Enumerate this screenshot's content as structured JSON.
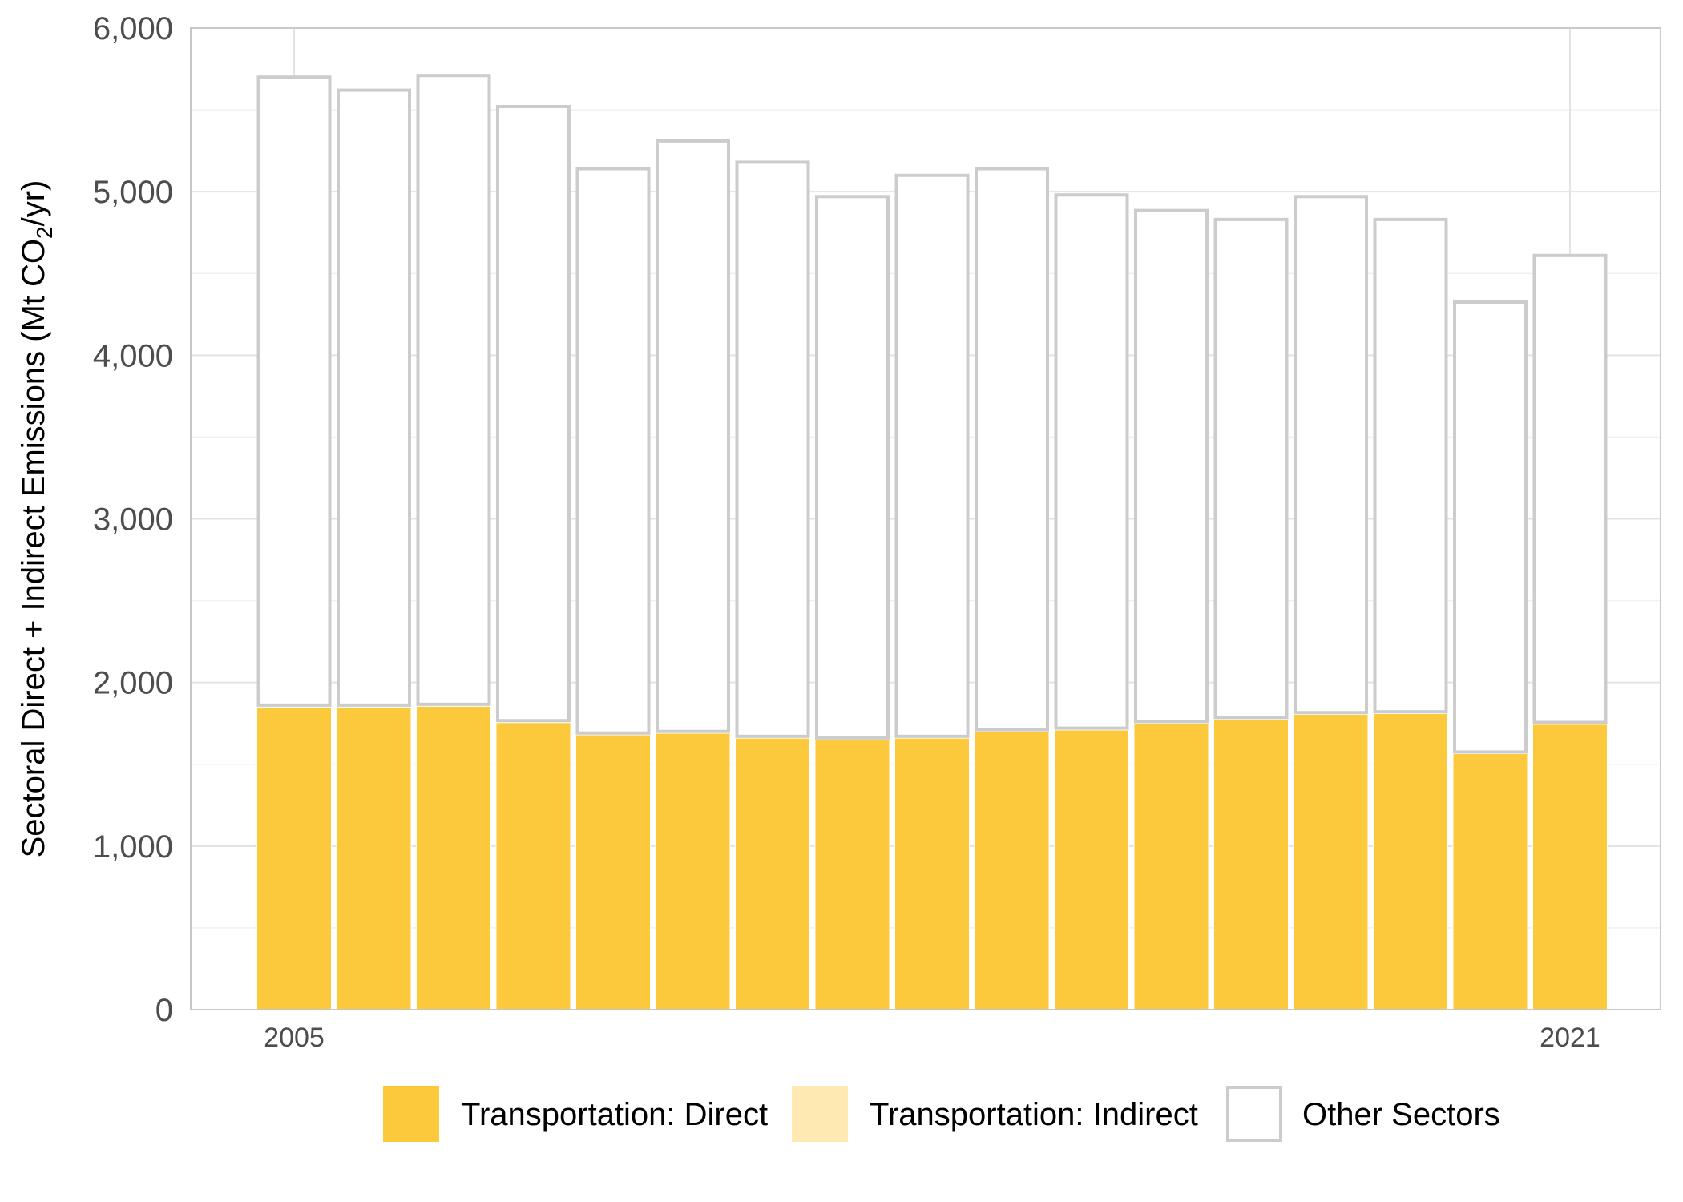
{
  "chart_data": {
    "type": "bar",
    "stacked": true,
    "ylabel": {
      "prefix": "Sectoral Direct + Indirect Emissions (Mt CO",
      "subscript": "2",
      "suffix": "/yr)"
    },
    "ylim": [
      0,
      6000
    ],
    "y_ticks": [
      0,
      1000,
      2000,
      3000,
      4000,
      5000,
      6000
    ],
    "y_tick_labels": [
      "0",
      "1,000",
      "2,000",
      "3,000",
      "4,000",
      "5,000",
      "6,000"
    ],
    "x": [
      2005,
      2006,
      2007,
      2008,
      2009,
      2010,
      2011,
      2012,
      2013,
      2014,
      2015,
      2016,
      2017,
      2018,
      2019,
      2020,
      2021
    ],
    "x_tick_labels": [
      {
        "year": 2005,
        "label": "2005"
      },
      {
        "year": 2021,
        "label": "2021"
      }
    ],
    "grid": true,
    "legend_position": "bottom",
    "series": [
      {
        "name": "Transportation: Direct",
        "color": "#FDC93C",
        "values": [
          1850,
          1850,
          1855,
          1755,
          1680,
          1690,
          1660,
          1650,
          1660,
          1700,
          1710,
          1750,
          1775,
          1805,
          1810,
          1565,
          1745
        ]
      },
      {
        "name": "Transportation: Indirect",
        "color": "#FFE9B3",
        "values": [
          12,
          12,
          12,
          12,
          11,
          11,
          11,
          11,
          11,
          11,
          11,
          11,
          11,
          11,
          11,
          10,
          11
        ]
      },
      {
        "name": "Other Sectors",
        "color": "#FFFFFF",
        "stroke": "#CCCCCC",
        "values": [
          3838,
          3758,
          3843,
          3753,
          3449,
          3609,
          3509,
          3309,
          3429,
          3429,
          3259,
          3124,
          3044,
          3154,
          3009,
          2750,
          2854
        ]
      }
    ]
  }
}
